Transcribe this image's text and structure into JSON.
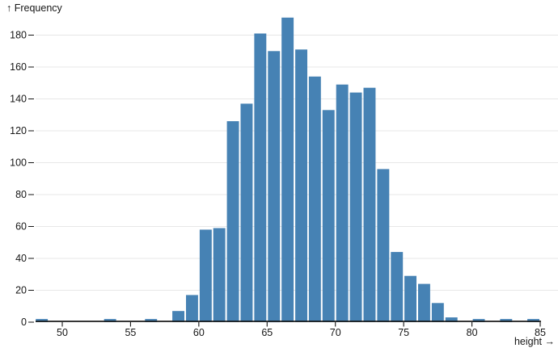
{
  "chart_data": {
    "type": "bar",
    "subtype": "histogram",
    "title": "",
    "xlabel": "height",
    "ylabel": "Frequency",
    "xlabel_display": "height →",
    "ylabel_display": "↑ Frequency",
    "x_ticks": [
      50,
      55,
      60,
      65,
      70,
      75,
      80,
      85
    ],
    "y_ticks": [
      0,
      20,
      40,
      60,
      80,
      100,
      120,
      140,
      160,
      180
    ],
    "xlim": [
      48,
      85.3
    ],
    "ylim": [
      0,
      192
    ],
    "grid": true,
    "legend_position": "none",
    "bar_color": "#4682b4",
    "grid_color": "#e7e7e7",
    "axis_color": "#1a1a1a",
    "text_color": "#161616",
    "background_color": "#ffffff",
    "bins": [
      {
        "x0": 48,
        "x1": 49,
        "frequency": 2
      },
      {
        "x0": 53,
        "x1": 54,
        "frequency": 2
      },
      {
        "x0": 56,
        "x1": 57,
        "frequency": 2
      },
      {
        "x0": 58,
        "x1": 59,
        "frequency": 7
      },
      {
        "x0": 59,
        "x1": 60,
        "frequency": 17
      },
      {
        "x0": 60,
        "x1": 61,
        "frequency": 58
      },
      {
        "x0": 61,
        "x1": 62,
        "frequency": 59
      },
      {
        "x0": 62,
        "x1": 63,
        "frequency": 126
      },
      {
        "x0": 63,
        "x1": 64,
        "frequency": 137
      },
      {
        "x0": 64,
        "x1": 65,
        "frequency": 181
      },
      {
        "x0": 65,
        "x1": 66,
        "frequency": 170
      },
      {
        "x0": 66,
        "x1": 67,
        "frequency": 191
      },
      {
        "x0": 67,
        "x1": 68,
        "frequency": 171
      },
      {
        "x0": 68,
        "x1": 69,
        "frequency": 154
      },
      {
        "x0": 69,
        "x1": 70,
        "frequency": 133
      },
      {
        "x0": 70,
        "x1": 71,
        "frequency": 149
      },
      {
        "x0": 71,
        "x1": 72,
        "frequency": 144
      },
      {
        "x0": 72,
        "x1": 73,
        "frequency": 147
      },
      {
        "x0": 73,
        "x1": 74,
        "frequency": 96
      },
      {
        "x0": 74,
        "x1": 75,
        "frequency": 44
      },
      {
        "x0": 75,
        "x1": 76,
        "frequency": 29
      },
      {
        "x0": 76,
        "x1": 77,
        "frequency": 24
      },
      {
        "x0": 77,
        "x1": 78,
        "frequency": 12
      },
      {
        "x0": 78,
        "x1": 79,
        "frequency": 3
      },
      {
        "x0": 80,
        "x1": 81,
        "frequency": 2
      },
      {
        "x0": 82,
        "x1": 83,
        "frequency": 2
      },
      {
        "x0": 84,
        "x1": 85,
        "frequency": 2
      }
    ]
  }
}
